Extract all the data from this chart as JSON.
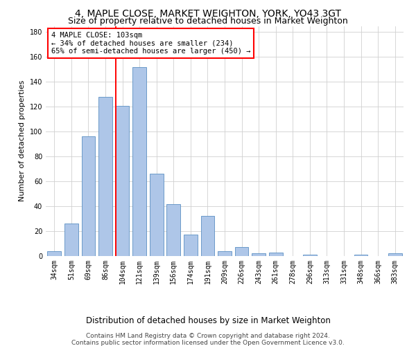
{
  "title1": "4, MAPLE CLOSE, MARKET WEIGHTON, YORK, YO43 3GT",
  "title2": "Size of property relative to detached houses in Market Weighton",
  "xlabel": "Distribution of detached houses by size in Market Weighton",
  "ylabel": "Number of detached properties",
  "categories": [
    "34sqm",
    "51sqm",
    "69sqm",
    "86sqm",
    "104sqm",
    "121sqm",
    "139sqm",
    "156sqm",
    "174sqm",
    "191sqm",
    "209sqm",
    "226sqm",
    "243sqm",
    "261sqm",
    "278sqm",
    "296sqm",
    "313sqm",
    "331sqm",
    "348sqm",
    "366sqm",
    "383sqm"
  ],
  "values": [
    4,
    26,
    96,
    128,
    121,
    152,
    66,
    42,
    17,
    32,
    4,
    7,
    2,
    3,
    0,
    1,
    0,
    0,
    1,
    0,
    2
  ],
  "bar_color": "#aec6e8",
  "bar_edge_color": "#5a8fc2",
  "grid_color": "#d0d0d0",
  "red_line_index": 4,
  "annotation_line1": "4 MAPLE CLOSE: 103sqm",
  "annotation_line2": "← 34% of detached houses are smaller (234)",
  "annotation_line3": "65% of semi-detached houses are larger (450) →",
  "footer1": "Contains HM Land Registry data © Crown copyright and database right 2024.",
  "footer2": "Contains public sector information licensed under the Open Government Licence v3.0.",
  "ylim": [
    0,
    185
  ],
  "yticks": [
    0,
    20,
    40,
    60,
    80,
    100,
    120,
    140,
    160,
    180
  ],
  "title1_fontsize": 10,
  "title2_fontsize": 9,
  "ylabel_fontsize": 8,
  "xlabel_fontsize": 8.5,
  "tick_fontsize": 7,
  "footer_fontsize": 6.5,
  "annotation_fontsize": 7.5
}
